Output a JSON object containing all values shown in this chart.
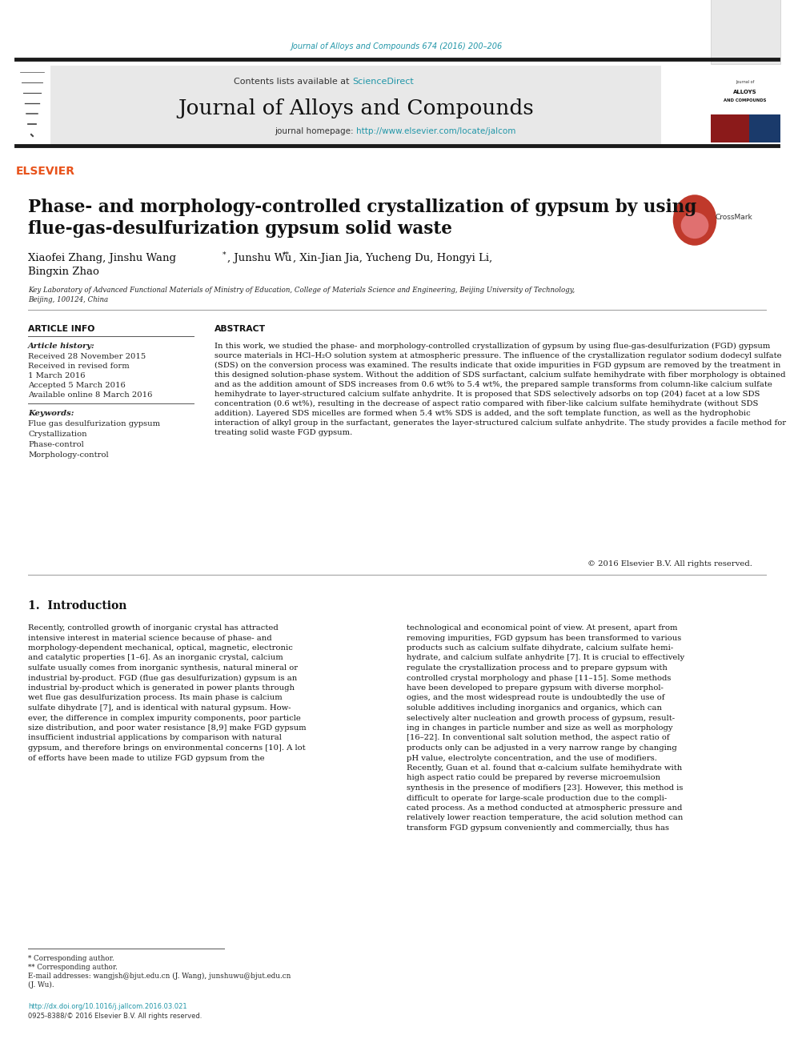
{
  "page_width": 9.92,
  "page_height": 13.23,
  "background_color": "#ffffff",
  "top_url": "Journal of Alloys and Compounds 674 (2016) 200–206",
  "top_url_color": "#2196a8",
  "journal_name": "Journal of Alloys and Compounds",
  "journal_homepage_prefix": "journal homepage: ",
  "journal_homepage_url": "http://www.elsevier.com/locate/jalcom",
  "journal_homepage_color": "#2196a8",
  "contents_text": "Contents lists available at ",
  "science_direct": "ScienceDirect",
  "science_direct_color": "#2196a8",
  "article_title_line1": "Phase- and morphology-controlled crystallization of gypsum by using",
  "article_title_line2": "flue-gas-desulfurization gypsum solid waste",
  "author_part1": "Xiaofei Zhang, Jinshu Wang",
  "author_star1": "*",
  "author_part2": ", Junshu Wu",
  "author_star2": "**",
  "author_part3": ", Xin-Jian Jia, Yucheng Du, Hongyi Li,",
  "author_line2": "Bingxin Zhao",
  "affiliation_line1": "Key Laboratory of Advanced Functional Materials of Ministry of Education, College of Materials Science and Engineering, Beijing University of Technology,",
  "affiliation_line2": "Beijing, 100124, China",
  "article_history_label": "Article history:",
  "received": "Received 28 November 2015",
  "revised": "Received in revised form",
  "revised2": "1 March 2016",
  "accepted": "Accepted 5 March 2016",
  "available": "Available online 8 March 2016",
  "keywords_label": "Keywords:",
  "keywords": [
    "Flue gas desulfurization gypsum",
    "Crystallization",
    "Phase-control",
    "Morphology-control"
  ],
  "abstract_label": "ABSTRACT",
  "abstract_text": "In this work, we studied the phase- and morphology-controlled crystallization of gypsum by using flue-gas-desulfurization (FGD) gypsum source materials in HCl–H₂O solution system at atmospheric pressure. The influence of the crystallization regulator sodium dodecyl sulfate (SDS) on the conversion process was examined. The results indicate that oxide impurities in FGD gypsum are removed by the treatment in this designed solution-phase system. Without the addition of SDS surfactant, calcium sulfate hemihydrate with fiber morphology is obtained and as the addition amount of SDS increases from 0.6 wt% to 5.4 wt%, the prepared sample transforms from column-like calcium sulfate hemihydrate to layer-structured calcium sulfate anhydrite. It is proposed that SDS selectively adsorbs on top (204) facet at a low SDS concentration (0.6 wt%), resulting in the decrease of aspect ratio compared with fiber-like calcium sulfate hemihydrate (without SDS addition). Layered SDS micelles are formed when 5.4 wt% SDS is added, and the soft template function, as well as the hydrophobic interaction of alkyl group in the surfactant, generates the layer-structured calcium sulfate anhydrite. The study provides a facile method for treating solid waste FGD gypsum.",
  "copyright": "© 2016 Elsevier B.V. All rights reserved.",
  "article_info_label": "ARTICLE INFO",
  "section1_title": "1.  Introduction",
  "intro_col1_lines": [
    "Recently, controlled growth of inorganic crystal has attracted",
    "intensive interest in material science because of phase- and",
    "morphology-dependent mechanical, optical, magnetic, electronic",
    "and catalytic properties [1–6]. As an inorganic crystal, calcium",
    "sulfate usually comes from inorganic synthesis, natural mineral or",
    "industrial by-product. FGD (flue gas desulfurization) gypsum is an",
    "industrial by-product which is generated in power plants through",
    "wet flue gas desulfurization process. Its main phase is calcium",
    "sulfate dihydrate [7], and is identical with natural gypsum. How-",
    "ever, the difference in complex impurity components, poor particle",
    "size distribution, and poor water resistance [8,9] make FGD gypsum",
    "insufficient industrial applications by comparison with natural",
    "gypsum, and therefore brings on environmental concerns [10]. A lot",
    "of efforts have been made to utilize FGD gypsum from the"
  ],
  "intro_col2_lines": [
    "technological and economical point of view. At present, apart from",
    "removing impurities, FGD gypsum has been transformed to various",
    "products such as calcium sulfate dihydrate, calcium sulfate hemi-",
    "hydrate, and calcium sulfate anhydrite [7]. It is crucial to effectively",
    "regulate the crystallization process and to prepare gypsum with",
    "controlled crystal morphology and phase [11–15]. Some methods",
    "have been developed to prepare gypsum with diverse morphol-",
    "ogies, and the most widespread route is undoubtedly the use of",
    "soluble additives including inorganics and organics, which can",
    "selectively alter nucleation and growth process of gypsum, result-",
    "ing in changes in particle number and size as well as morphology",
    "[16–22]. In conventional salt solution method, the aspect ratio of",
    "products only can be adjusted in a very narrow range by changing",
    "pH value, electrolyte concentration, and the use of modifiers.",
    "Recently, Guan et al. found that α-calcium sulfate hemihydrate with",
    "high aspect ratio could be prepared by reverse microemulsion",
    "synthesis in the presence of modifiers [23]. However, this method is",
    "difficult to operate for large-scale production due to the compli-",
    "cated process. As a method conducted at atmospheric pressure and",
    "relatively lower reaction temperature, the acid solution method can",
    "transform FGD gypsum conveniently and commercially, thus has"
  ],
  "footnote1": "* Corresponding author.",
  "footnote2": "** Corresponding author.",
  "footnote3": "E-mail addresses: wangjsh@bjut.edu.cn (J. Wang), junshuwu@bjut.edu.cn",
  "footnote4": "(J. Wu).",
  "doi_text": "http://dx.doi.org/10.1016/j.jallcom.2016.03.021",
  "issn_text": "0925-8388/© 2016 Elsevier B.V. All rights reserved.",
  "header_bg": "#e8e8e8",
  "elsevier_color": "#e8521a",
  "dark_bar_color": "#1a1a1a",
  "line_color": "#555555"
}
